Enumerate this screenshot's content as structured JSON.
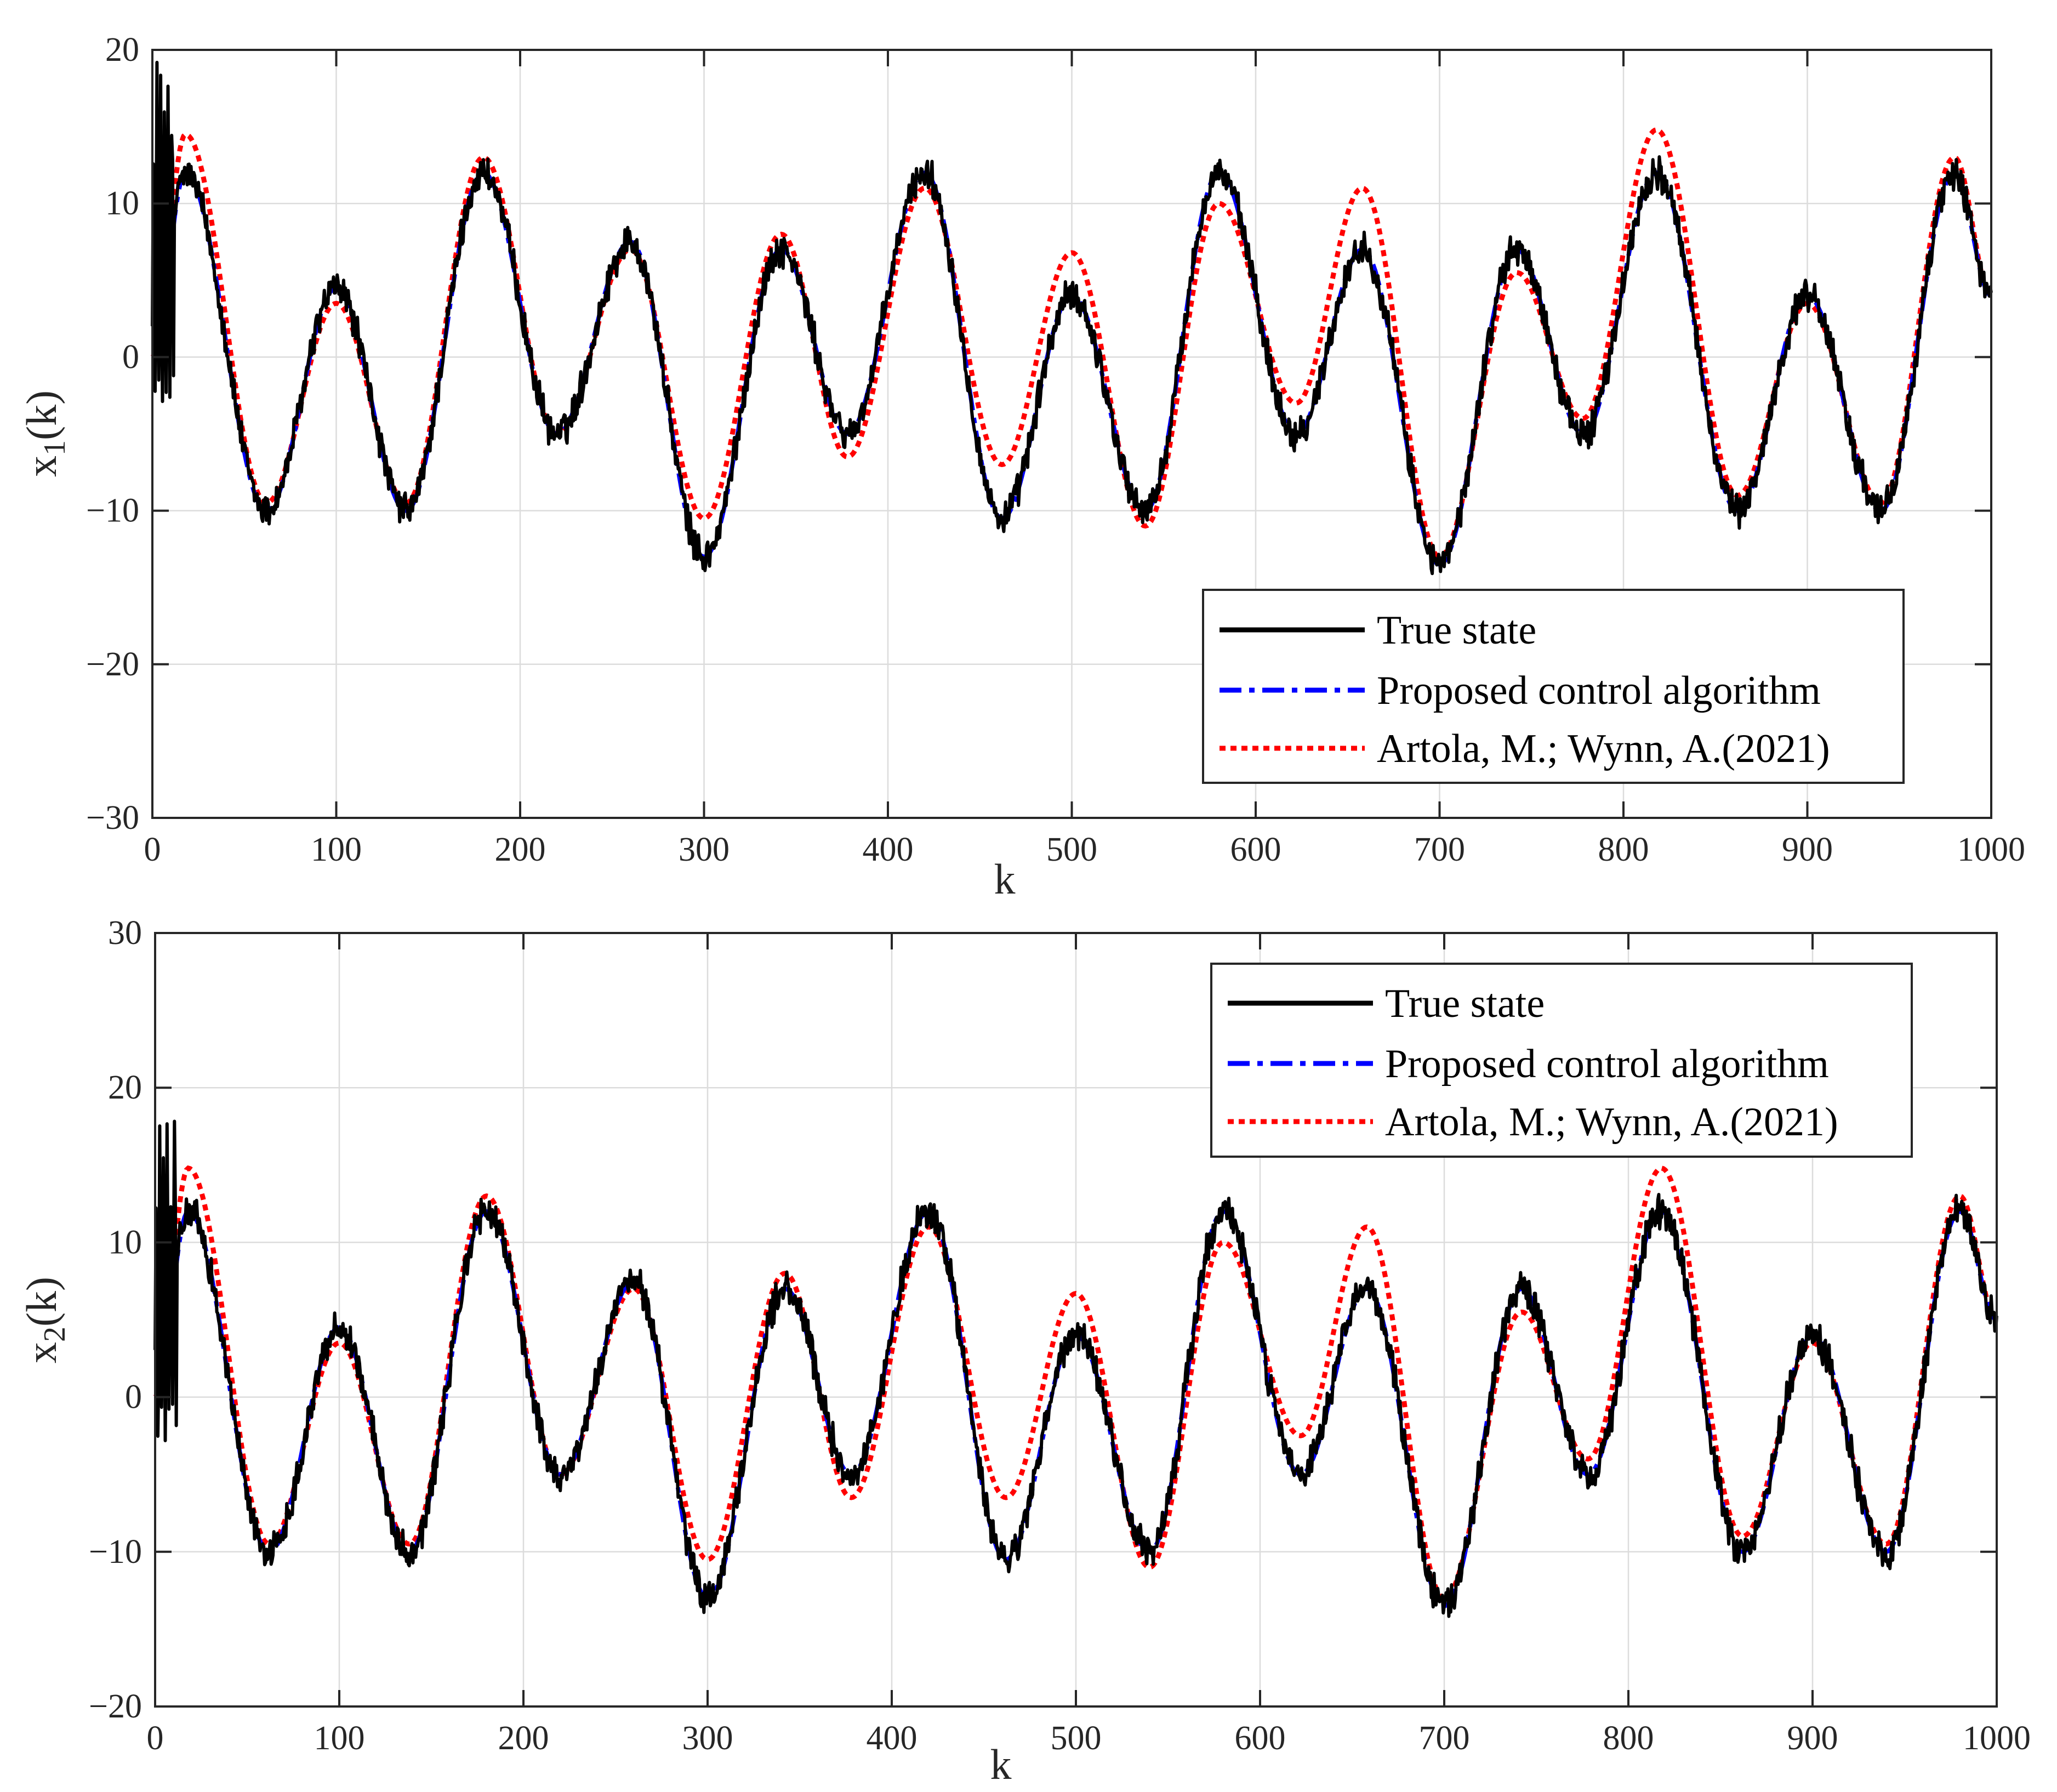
{
  "chart_data": [
    {
      "type": "line",
      "id": "top",
      "xlabel": "k",
      "ylabel": "x",
      "ylabel_sub": "1",
      "ylabel_suffix": "(k)",
      "xlim": [
        0,
        1000
      ],
      "ylim": [
        -30,
        20
      ],
      "xticks": [
        0,
        100,
        200,
        300,
        400,
        500,
        600,
        700,
        800,
        900,
        1000
      ],
      "yticks": [
        -30,
        -20,
        -10,
        0,
        10,
        20
      ],
      "xtick_labels": [
        "0",
        "100",
        "200",
        "300",
        "400",
        "500",
        "600",
        "700",
        "800",
        "900",
        "1000"
      ],
      "ytick_labels": [
        "−30",
        "−20",
        "−10",
        "0",
        "10",
        "20"
      ],
      "grid": true,
      "legend_position": "bottom-right",
      "legend": [
        "True state",
        "Proposed control algorithm",
        "Artola, M.; Wynn, A.(2021)"
      ],
      "series_colors": [
        "#000000",
        "#0000ff",
        "#ff0000"
      ],
      "series_styles": [
        "solid",
        "dash-dot",
        "dotted"
      ],
      "noise_level": 0.9,
      "spike_peak": 19.5,
      "x": [
        0,
        18,
        62,
        100,
        138,
        180,
        220,
        260,
        300,
        342,
        378,
        420,
        462,
        500,
        540,
        580,
        622,
        658,
        700,
        742,
        778,
        818,
        862,
        900,
        940,
        980,
        1000
      ],
      "true_state": [
        0,
        12,
        -10,
        4.5,
        -10,
        12,
        -5,
        7.5,
        -13,
        7,
        -5,
        12,
        -10.5,
        4,
        -10,
        12,
        -5,
        7,
        -13.5,
        7,
        -5,
        12,
        -10,
        4,
        -10,
        12,
        4
      ],
      "proposed": [
        0,
        12,
        -10,
        4.5,
        -10,
        12,
        -5,
        7.5,
        -13,
        7,
        -5,
        12,
        -10.5,
        4,
        -10,
        12,
        -5,
        7,
        -13.5,
        7,
        -5,
        12,
        -10,
        4,
        -10,
        12,
        4
      ],
      "artola": [
        0,
        14.5,
        -9.5,
        3.5,
        -9.5,
        13,
        -5,
        7,
        -10.5,
        8,
        -6.5,
        11,
        -7,
        6.8,
        -11,
        10,
        -3,
        11,
        -13,
        5.5,
        -4,
        14.8,
        -9,
        3.5,
        -9.5,
        13,
        4
      ]
    },
    {
      "type": "line",
      "id": "bottom",
      "xlabel": "k",
      "ylabel": "x",
      "ylabel_sub": "2",
      "ylabel_suffix": "(k)",
      "xlim": [
        0,
        1000
      ],
      "ylim": [
        -20,
        30
      ],
      "xticks": [
        0,
        100,
        200,
        300,
        400,
        500,
        600,
        700,
        800,
        900,
        1000
      ],
      "yticks": [
        -20,
        -10,
        0,
        10,
        20,
        30
      ],
      "xtick_labels": [
        "0",
        "100",
        "200",
        "300",
        "400",
        "500",
        "600",
        "700",
        "800",
        "900",
        "1000"
      ],
      "ytick_labels": [
        "−20",
        "−10",
        "0",
        "10",
        "20",
        "30"
      ],
      "grid": true,
      "legend_position": "top-right",
      "legend": [
        "True state",
        "Proposed control algorithm",
        "Artola, M.; Wynn, A.(2021)"
      ],
      "series_colors": [
        "#000000",
        "#0000ff",
        "#ff0000"
      ],
      "series_styles": [
        "solid",
        "dash-dot",
        "dotted"
      ],
      "noise_level": 0.9,
      "spike_peak": 19.3,
      "x": [
        0,
        18,
        62,
        100,
        138,
        180,
        220,
        260,
        300,
        342,
        378,
        420,
        462,
        500,
        540,
        580,
        622,
        658,
        700,
        742,
        778,
        818,
        862,
        900,
        940,
        980,
        1000
      ],
      "true_state": [
        0,
        12,
        -10,
        4.5,
        -10,
        12,
        -5,
        7.5,
        -13,
        7,
        -5,
        12,
        -10.5,
        4,
        -10,
        12,
        -5,
        7,
        -13.5,
        7,
        -5,
        12,
        -10,
        4,
        -10,
        12,
        5
      ],
      "proposed": [
        0,
        12,
        -10,
        4.5,
        -10,
        12,
        -5,
        7.5,
        -13,
        7,
        -5,
        12,
        -10.5,
        4,
        -10,
        12,
        -5,
        7,
        -13.5,
        7,
        -5,
        12,
        -10,
        4,
        -10,
        12,
        5
      ],
      "artola": [
        0,
        14.8,
        -9.5,
        3.5,
        -9.5,
        13,
        -5,
        7,
        -10.5,
        8,
        -6.5,
        11,
        -6.5,
        6.7,
        -11,
        10,
        -2.5,
        11,
        -13,
        5.5,
        -4,
        14.8,
        -9,
        3.5,
        -9.5,
        13,
        5
      ]
    }
  ]
}
